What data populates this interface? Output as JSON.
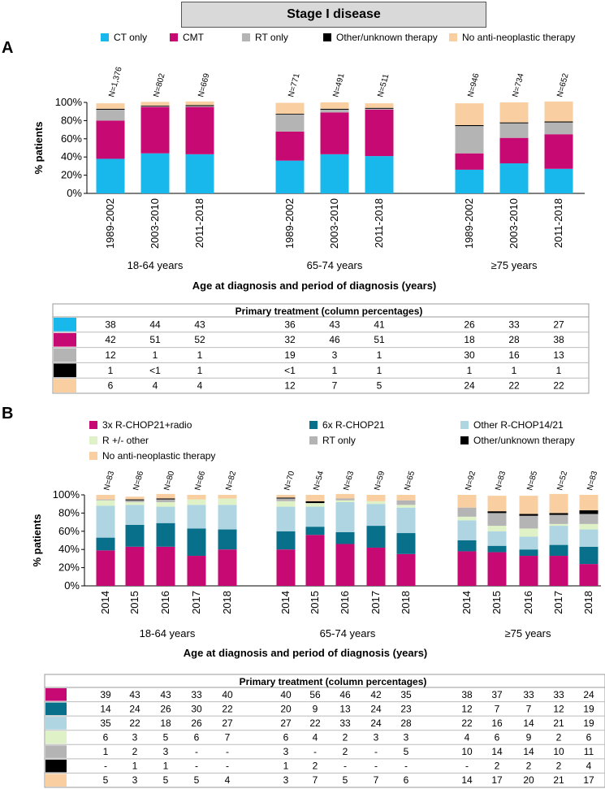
{
  "title": "Stage I disease",
  "colors": {
    "ct": "#18b8ec",
    "cmt": "#c70a73",
    "rt": "#b4b4b4",
    "other": "#000000",
    "none": "#f9cfa2",
    "r3": "#c70a73",
    "r6": "#08708a",
    "rother": "#aed5e1",
    "rpm": "#dff1c6"
  },
  "panel_a": {
    "letter": "A",
    "legend": [
      "CT only",
      "CMT",
      "RT only",
      "Other/unknown therapy",
      "No anti-neoplastic therapy"
    ],
    "ylabel": "% patients",
    "yticks": [
      "0%",
      "20%",
      "40%",
      "60%",
      "80%",
      "100%"
    ],
    "xlabel": "Age at diagnosis and period of diagnosis (years)",
    "groups": [
      "18-64 years",
      "65-74 years",
      "≥75 years"
    ],
    "table_title": "Primary treatment (column percentages)"
  },
  "panel_b": {
    "letter": "B",
    "legend": [
      "3x R-CHOP21+radio",
      "6x R-CHOP21",
      "Other R-CHOP14/21",
      "R +/- other",
      "RT only",
      "Other/unknown therapy",
      "No anti-neoplastic therapy"
    ],
    "ylabel": "% patients",
    "yticks": [
      "0%",
      "20%",
      "40%",
      "60%",
      "80%",
      "100%"
    ],
    "xlabel": "Age at diagnosis and period of diagnosis (years)",
    "groups": [
      "18-64 years",
      "65-74 years",
      "≥75 years"
    ],
    "table_title": "Primary treatment (column percentages)"
  },
  "chart_data": [
    {
      "type": "bar",
      "stacked": true,
      "title": "Stage I disease - A",
      "ylabel": "% patients",
      "ylim": [
        0,
        100
      ],
      "xlabel": "Age at diagnosis and period of diagnosis (years)",
      "categories": [
        "1989-2002",
        "2003-2010",
        "2011-2018",
        "1989-2002",
        "2003-2010",
        "2011-2018",
        "1989-2002",
        "2003-2010",
        "2011-2018"
      ],
      "groups": [
        "18-64 years",
        "65-74 years",
        "≥75 years"
      ],
      "n_labels": [
        "N=1,376",
        "N=802",
        "N=669",
        "N=771",
        "N=491",
        "N=511",
        "N=946",
        "N=734",
        "N=652"
      ],
      "series": [
        {
          "name": "CT only",
          "values": [
            38,
            44,
            43,
            36,
            43,
            41,
            26,
            33,
            27
          ]
        },
        {
          "name": "CMT",
          "values": [
            42,
            51,
            52,
            32,
            46,
            51,
            18,
            28,
            38
          ]
        },
        {
          "name": "RT only",
          "values": [
            12,
            1,
            1,
            19,
            3,
            1,
            30,
            16,
            13
          ]
        },
        {
          "name": "Other/unknown therapy",
          "values": [
            1,
            0.5,
            1,
            0.5,
            1,
            1,
            1,
            1,
            1
          ]
        },
        {
          "name": "No anti-neoplastic therapy",
          "values": [
            6,
            4,
            4,
            12,
            7,
            5,
            24,
            22,
            22
          ]
        }
      ],
      "table": [
        [
          "38",
          "44",
          "43",
          "36",
          "43",
          "41",
          "26",
          "33",
          "27"
        ],
        [
          "42",
          "51",
          "52",
          "32",
          "46",
          "51",
          "18",
          "28",
          "38"
        ],
        [
          "12",
          "1",
          "1",
          "19",
          "3",
          "1",
          "30",
          "16",
          "13"
        ],
        [
          "1",
          "<1",
          "1",
          "<1",
          "1",
          "1",
          "1",
          "1",
          "1"
        ],
        [
          "6",
          "4",
          "4",
          "12",
          "7",
          "5",
          "24",
          "22",
          "22"
        ]
      ]
    },
    {
      "type": "bar",
      "stacked": true,
      "title": "Stage I disease - B",
      "ylabel": "% patients",
      "ylim": [
        0,
        100
      ],
      "xlabel": "Age at diagnosis and period of diagnosis (years)",
      "categories": [
        "2014",
        "2015",
        "2016",
        "2017",
        "2018",
        "2014",
        "2015",
        "2016",
        "2017",
        "2018",
        "2014",
        "2015",
        "2016",
        "2017",
        "2018"
      ],
      "groups": [
        "18-64 years",
        "65-74 years",
        "≥75 years"
      ],
      "n_labels": [
        "N=83",
        "N=86",
        "N=80",
        "N=66",
        "N=82",
        "N=70",
        "N=54",
        "N=63",
        "N=59",
        "N=65",
        "N=92",
        "N=83",
        "N=85",
        "N=52",
        "N=83"
      ],
      "series": [
        {
          "name": "3x R-CHOP21+radio",
          "values": [
            39,
            43,
            43,
            33,
            40,
            40,
            56,
            46,
            42,
            35,
            38,
            37,
            33,
            33,
            24
          ]
        },
        {
          "name": "6x R-CHOP21",
          "values": [
            14,
            24,
            26,
            30,
            22,
            20,
            9,
            13,
            24,
            23,
            12,
            7,
            7,
            12,
            19
          ]
        },
        {
          "name": "Other R-CHOP14/21",
          "values": [
            35,
            22,
            18,
            26,
            27,
            27,
            22,
            33,
            24,
            28,
            22,
            16,
            14,
            21,
            19
          ]
        },
        {
          "name": "R +/- other",
          "values": [
            6,
            3,
            5,
            6,
            7,
            6,
            4,
            2,
            3,
            3,
            4,
            6,
            9,
            2,
            6
          ]
        },
        {
          "name": "RT only",
          "values": [
            1,
            2,
            3,
            0,
            0,
            3,
            0,
            2,
            0,
            5,
            10,
            14,
            14,
            10,
            11
          ]
        },
        {
          "name": "Other/unknown therapy",
          "values": [
            0,
            1,
            1,
            0,
            0,
            1,
            2,
            0,
            0,
            0,
            0,
            2,
            2,
            2,
            4
          ]
        },
        {
          "name": "No anti-neoplastic therapy",
          "values": [
            5,
            3,
            5,
            5,
            4,
            3,
            7,
            5,
            7,
            6,
            14,
            17,
            20,
            21,
            17
          ]
        }
      ],
      "table": [
        [
          "39",
          "43",
          "43",
          "33",
          "40",
          "40",
          "56",
          "46",
          "42",
          "35",
          "38",
          "37",
          "33",
          "33",
          "24"
        ],
        [
          "14",
          "24",
          "26",
          "30",
          "22",
          "20",
          "9",
          "13",
          "24",
          "23",
          "12",
          "7",
          "7",
          "12",
          "19"
        ],
        [
          "35",
          "22",
          "18",
          "26",
          "27",
          "27",
          "22",
          "33",
          "24",
          "28",
          "22",
          "16",
          "14",
          "21",
          "19"
        ],
        [
          "6",
          "3",
          "5",
          "6",
          "7",
          "6",
          "4",
          "2",
          "3",
          "3",
          "4",
          "6",
          "9",
          "2",
          "6"
        ],
        [
          "1",
          "2",
          "3",
          "-",
          "-",
          "3",
          "-",
          "2",
          "-",
          "5",
          "10",
          "14",
          "14",
          "10",
          "11"
        ],
        [
          "-",
          "1",
          "1",
          "-",
          "-",
          "1",
          "2",
          "-",
          "-",
          "-",
          "-",
          "2",
          "2",
          "2",
          "4"
        ],
        [
          "5",
          "3",
          "5",
          "5",
          "4",
          "3",
          "7",
          "5",
          "7",
          "6",
          "14",
          "17",
          "20",
          "21",
          "17"
        ]
      ]
    }
  ]
}
